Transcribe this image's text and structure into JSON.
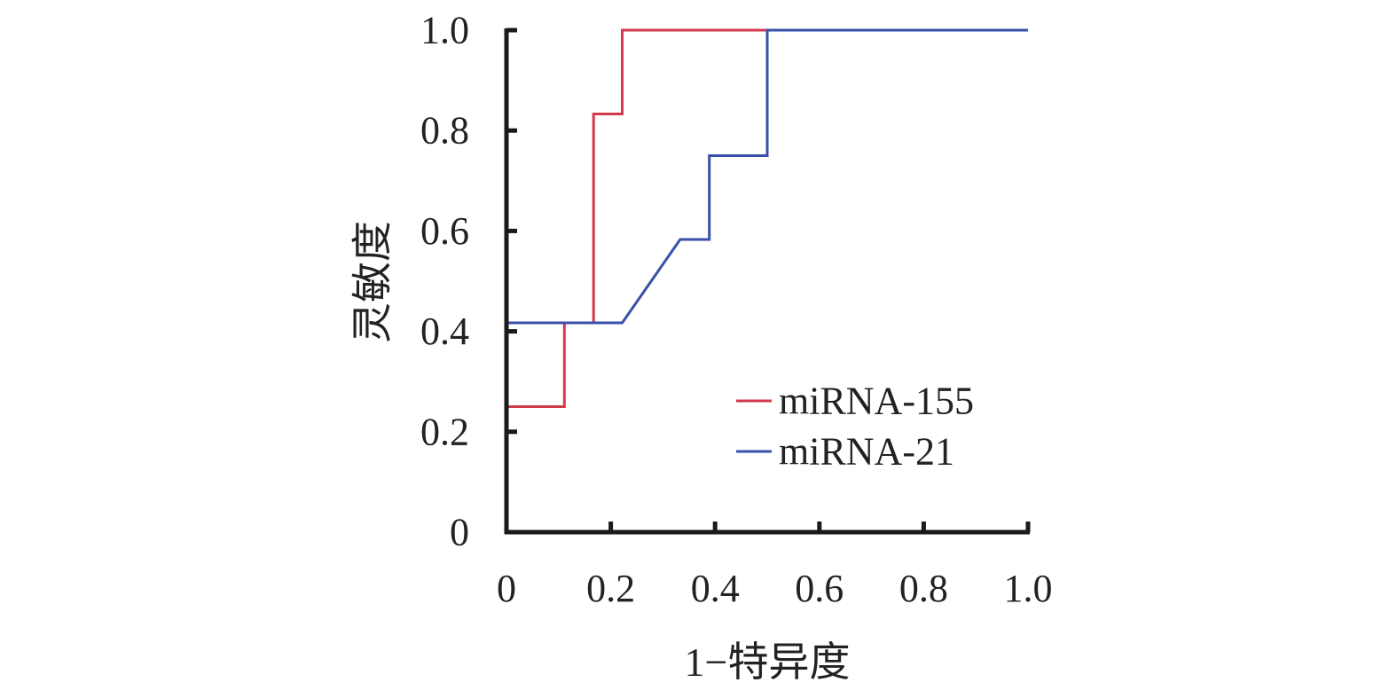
{
  "chart_data": {
    "type": "line",
    "title": "",
    "xlabel": "1−特异度",
    "ylabel": "灵敏度",
    "xlim": [
      0,
      1.0
    ],
    "ylim": [
      0,
      1.0
    ],
    "x_ticks": [
      "0",
      "0.2",
      "0.4",
      "0.6",
      "0.8",
      "1.0"
    ],
    "y_ticks": [
      "0",
      "0.2",
      "0.4",
      "0.6",
      "0.8",
      "1.0"
    ],
    "grid": false,
    "legend_position": "bottom-right",
    "series": [
      {
        "name": "miRNA-155",
        "color": "#d23a4b",
        "points": [
          [
            0,
            0
          ],
          [
            0,
            0.25
          ],
          [
            0.111,
            0.25
          ],
          [
            0.111,
            0.417
          ],
          [
            0.167,
            0.417
          ],
          [
            0.167,
            0.833
          ],
          [
            0.222,
            0.833
          ],
          [
            0.222,
            1.0
          ],
          [
            1.0,
            1.0
          ]
        ]
      },
      {
        "name": "miRNA-21",
        "color": "#3a4fa8",
        "points": [
          [
            0,
            0
          ],
          [
            0,
            0.417
          ],
          [
            0.222,
            0.417
          ],
          [
            0.333,
            0.583
          ],
          [
            0.389,
            0.583
          ],
          [
            0.389,
            0.75
          ],
          [
            0.5,
            0.75
          ],
          [
            0.5,
            1.0
          ],
          [
            1.0,
            1.0
          ]
        ]
      }
    ]
  }
}
